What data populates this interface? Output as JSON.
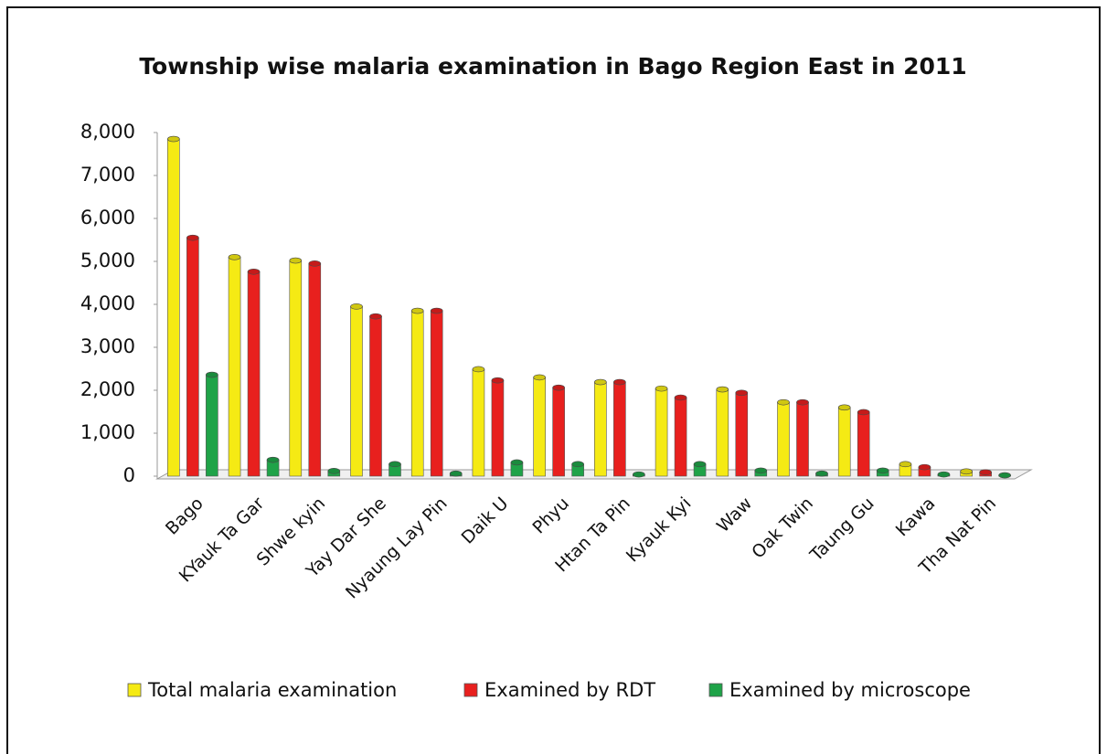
{
  "chart_data": {
    "type": "bar",
    "title": "Township wise malaria examination in Bago Region East in 2011",
    "categories": [
      "Bago",
      "KYauk Ta Gar",
      "Shwe kyin",
      "Yay Dar She",
      "Nyaung Lay Pin",
      "Daik U",
      "Phyu",
      "Htan Ta Pin",
      "Kyauk Kyi",
      "Waw",
      "Oak Twin",
      "Taung Gu",
      "Kawa",
      "Tha Nat Pin"
    ],
    "series": [
      {
        "name": "Total malaria examination",
        "color": "#f5ea14",
        "values": [
          7850,
          5100,
          5020,
          3950,
          3850,
          2490,
          2300,
          2190,
          2040,
          2020,
          1720,
          1600,
          280,
          110
        ]
      },
      {
        "name": "Examined by RDT",
        "color": "#e8201e",
        "values": [
          5550,
          4760,
          4950,
          3720,
          3850,
          2230,
          2060,
          2190,
          1830,
          1940,
          1720,
          1490,
          210,
          90
        ]
      },
      {
        "name": "Examined by microscope",
        "color": "#1fa348",
        "values": [
          2360,
          380,
          120,
          280,
          60,
          320,
          280,
          40,
          280,
          130,
          60,
          130,
          40,
          20
        ]
      }
    ],
    "ylim": [
      0,
      8000
    ],
    "yticks": [
      0,
      {
        "value": 1000,
        "label": "1,000"
      },
      {
        "value": 2000,
        "label": "2,000"
      },
      {
        "value": 3000,
        "label": "3,000"
      },
      {
        "value": 4000,
        "label": "4,000"
      },
      {
        "value": 5000,
        "label": "5,000"
      },
      {
        "value": 6000,
        "label": "6,000"
      },
      {
        "value": 7000,
        "label": "7,000"
      },
      {
        "value": 8000,
        "label": "8,000"
      }
    ],
    "legend": "bottom"
  }
}
